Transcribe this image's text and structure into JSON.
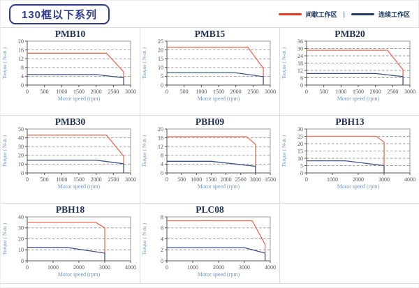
{
  "page": {
    "title": "130框以下系列"
  },
  "legend": {
    "separator": "|",
    "items": [
      {
        "label": "间歇工作区",
        "color": "#e8391d"
      },
      {
        "label": "连续工作区",
        "color": "#1f3864"
      }
    ]
  },
  "colors": {
    "line_red": "#ed6a55",
    "line_blue": "#3c5384",
    "legend_red": "#e8391d",
    "legend_blue": "#1f3864",
    "grid": "#9a9a9a",
    "plot_border": "#9a9a9a",
    "axis": "#55504a",
    "tick_text": "#54504a",
    "axis_label": "#6e93bd",
    "title_text": "#1f3050",
    "header_navy": "#2e3a8c",
    "cell_border": "#dcdcdc"
  },
  "chart_data": [
    {
      "type": "line",
      "title": "PMB10",
      "xlabel": "Motor speed (rpm)",
      "ylabel": "Torque ( N-m )",
      "xlim": [
        0,
        3000
      ],
      "ylim": [
        0,
        20
      ],
      "xticks": [
        0,
        500,
        1000,
        1500,
        2000,
        2500,
        3000
      ],
      "yticks": [
        0,
        4,
        8,
        12,
        16,
        20
      ],
      "series": [
        {
          "name": "间歇工作区",
          "color": "red",
          "points": [
            [
              0,
              14.5
            ],
            [
              2300,
              14.5
            ],
            [
              2800,
              6
            ],
            [
              2800,
              3.3
            ]
          ]
        },
        {
          "name": "连续工作区",
          "color": "blue",
          "points": [
            [
              0,
              4.8
            ],
            [
              2000,
              4.8
            ],
            [
              2800,
              3.3
            ],
            [
              2800,
              0
            ]
          ]
        }
      ]
    },
    {
      "type": "line",
      "title": "PMB15",
      "xlabel": "Motor speed (rpm)",
      "ylabel": "Torque ( N-m )",
      "xlim": [
        0,
        3000
      ],
      "ylim": [
        0,
        25
      ],
      "xticks": [
        0,
        500,
        1000,
        1500,
        2000,
        2500,
        3000
      ],
      "yticks": [
        0,
        5,
        10,
        15,
        20,
        25
      ],
      "series": [
        {
          "name": "间歇工作区",
          "color": "red",
          "points": [
            [
              0,
              21.5
            ],
            [
              2350,
              21.5
            ],
            [
              2800,
              9.5
            ],
            [
              2800,
              4.8
            ]
          ]
        },
        {
          "name": "连续工作区",
          "color": "blue",
          "points": [
            [
              0,
              7
            ],
            [
              2000,
              7
            ],
            [
              2800,
              4.8
            ],
            [
              2800,
              0
            ]
          ]
        }
      ]
    },
    {
      "type": "line",
      "title": "PMB20",
      "xlabel": "Motor speed (rpm)",
      "ylabel": "Torque ( N-m )",
      "xlim": [
        0,
        3000
      ],
      "ylim": [
        0,
        36
      ],
      "xticks": [
        0,
        500,
        1000,
        1500,
        2000,
        2500,
        3000
      ],
      "yticks": [
        0,
        6,
        12,
        18,
        24,
        30,
        36
      ],
      "series": [
        {
          "name": "间歇工作区",
          "color": "red",
          "points": [
            [
              0,
              28.5
            ],
            [
              2350,
              28.5
            ],
            [
              2800,
              12.5
            ],
            [
              2800,
              7
            ]
          ]
        },
        {
          "name": "连续工作区",
          "color": "blue",
          "points": [
            [
              0,
              9.5
            ],
            [
              2000,
              9.5
            ],
            [
              2800,
              7
            ],
            [
              2800,
              0
            ]
          ]
        }
      ]
    },
    {
      "type": "line",
      "title": "PMB30",
      "xlabel": "Motor speed (rpm)",
      "ylabel": "Torque ( N-m )",
      "xlim": [
        0,
        3000
      ],
      "ylim": [
        0,
        50
      ],
      "xticks": [
        0,
        500,
        1000,
        1500,
        2000,
        2500,
        3000
      ],
      "yticks": [
        0,
        10,
        20,
        30,
        40,
        50
      ],
      "series": [
        {
          "name": "间歇工作区",
          "color": "red",
          "points": [
            [
              0,
              43
            ],
            [
              2300,
              43
            ],
            [
              2800,
              19
            ],
            [
              2800,
              10.5
            ]
          ]
        },
        {
          "name": "连续工作区",
          "color": "blue",
          "points": [
            [
              0,
              14.5
            ],
            [
              2000,
              14.5
            ],
            [
              2800,
              10.5
            ],
            [
              2800,
              0
            ]
          ]
        }
      ]
    },
    {
      "type": "line",
      "title": "PBH09",
      "xlabel": "Motor speed (rpm)",
      "ylabel": "Torque ( N-m )",
      "xlim": [
        0,
        3500
      ],
      "ylim": [
        0,
        20
      ],
      "xticks": [
        0,
        500,
        1000,
        1500,
        2000,
        2500,
        3000,
        3500
      ],
      "yticks": [
        0,
        4,
        8,
        12,
        16,
        20
      ],
      "series": [
        {
          "name": "间歇工作区",
          "color": "red",
          "points": [
            [
              0,
              16.5
            ],
            [
              2700,
              16.5
            ],
            [
              3000,
              13
            ],
            [
              3000,
              3
            ]
          ]
        },
        {
          "name": "连续工作区",
          "color": "blue",
          "points": [
            [
              0,
              5.3
            ],
            [
              1500,
              5.3
            ],
            [
              3000,
              3
            ],
            [
              3000,
              0
            ]
          ]
        }
      ]
    },
    {
      "type": "line",
      "title": "PBH13",
      "xlabel": "Motor speed (rpm)",
      "ylabel": "Torque ( N-m )",
      "xlim": [
        0,
        4000
      ],
      "ylim": [
        0,
        30
      ],
      "xticks": [
        0,
        1000,
        2000,
        3000,
        4000
      ],
      "yticks": [
        0,
        5,
        10,
        15,
        20,
        25,
        30
      ],
      "series": [
        {
          "name": "间歇工作区",
          "color": "red",
          "points": [
            [
              0,
              25
            ],
            [
              2700,
              25
            ],
            [
              3000,
              21
            ],
            [
              3000,
              5
            ]
          ]
        },
        {
          "name": "连续工作区",
          "color": "blue",
          "points": [
            [
              0,
              8.3
            ],
            [
              1500,
              8.3
            ],
            [
              3000,
              5
            ],
            [
              3000,
              0
            ]
          ]
        }
      ]
    },
    {
      "type": "line",
      "title": "PBH18",
      "xlabel": "Motor speed (rpm)",
      "ylabel": "Torque ( N-m )",
      "xlim": [
        0,
        4000
      ],
      "ylim": [
        0,
        40
      ],
      "xticks": [
        0,
        1000,
        2000,
        3000,
        4000
      ],
      "yticks": [
        0,
        10,
        20,
        30,
        40
      ],
      "series": [
        {
          "name": "间歇工作区",
          "color": "red",
          "points": [
            [
              0,
              35
            ],
            [
              2650,
              35
            ],
            [
              3000,
              30
            ],
            [
              3000,
              7
            ]
          ]
        },
        {
          "name": "连续工作区",
          "color": "blue",
          "points": [
            [
              0,
              12.3
            ],
            [
              1500,
              12.3
            ],
            [
              3000,
              7
            ],
            [
              3000,
              0
            ]
          ]
        }
      ]
    },
    {
      "type": "line",
      "title": "PLC08",
      "xlabel": "Motor speed (rpm)",
      "ylabel": "Torque ( N-m )",
      "xlim": [
        0,
        4000
      ],
      "ylim": [
        0,
        8
      ],
      "xticks": [
        0,
        1000,
        2000,
        3000,
        4000
      ],
      "yticks": [
        0,
        2,
        4,
        6,
        8
      ],
      "series": [
        {
          "name": "间歇工作区",
          "color": "red",
          "points": [
            [
              0,
              7.3
            ],
            [
              3300,
              7.3
            ],
            [
              3800,
              3
            ],
            [
              3800,
              1.4
            ]
          ]
        },
        {
          "name": "连续工作区",
          "color": "blue",
          "points": [
            [
              0,
              2.4
            ],
            [
              3000,
              2.4
            ],
            [
              3800,
              1.4
            ],
            [
              3800,
              0
            ]
          ]
        }
      ]
    }
  ]
}
